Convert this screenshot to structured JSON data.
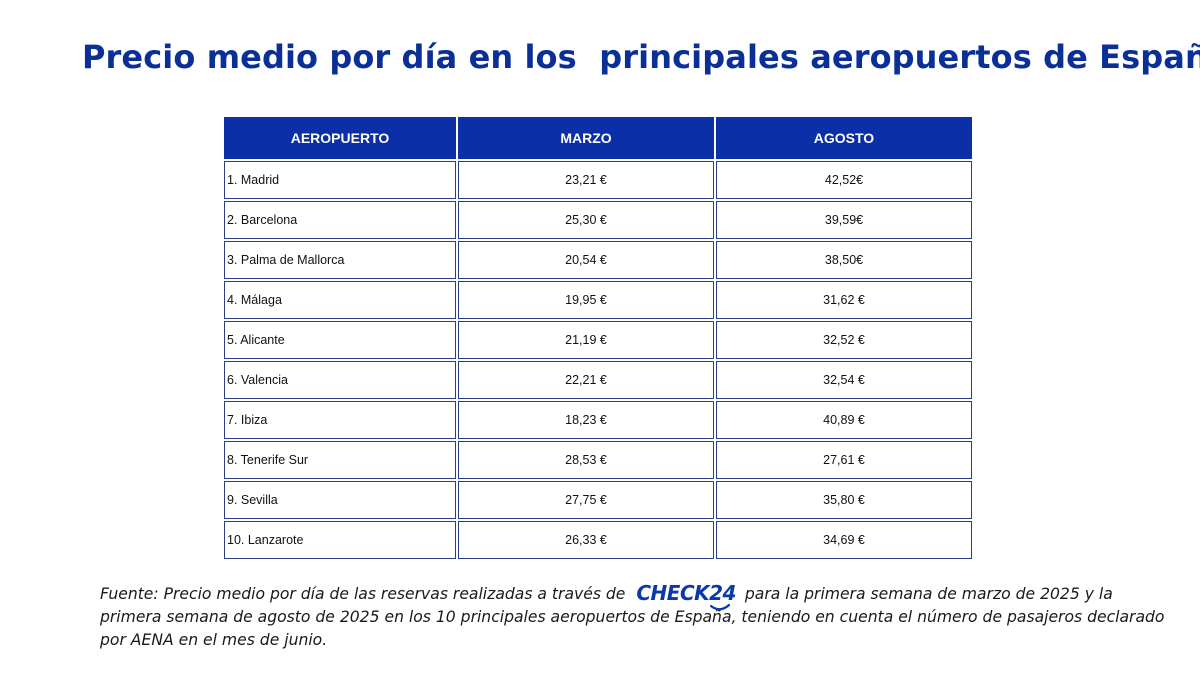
{
  "title": "Precio medio por día en los  principales aeropuertos de España",
  "table": {
    "headers": {
      "airport": "AEROPUERTO",
      "march": "MARZO",
      "august": "AGOSTO"
    },
    "rows": [
      {
        "airport": "1. Madrid",
        "march": "23,21 €",
        "august": "42,52€"
      },
      {
        "airport": "2. Barcelona",
        "march": "25,30 €",
        "august": "39,59€"
      },
      {
        "airport": "3. Palma de Mallorca",
        "march": "20,54 €",
        "august": "38,50€"
      },
      {
        "airport": "4. Málaga",
        "march": "19,95 €",
        "august": "31,62 €"
      },
      {
        "airport": "5. Alicante",
        "march": "21,19 €",
        "august": "32,52 €"
      },
      {
        "airport": "6. Valencia",
        "march": "22,21 €",
        "august": "32,54 €"
      },
      {
        "airport": "7. Ibiza",
        "march": "18,23 €",
        "august": "40,89 €"
      },
      {
        "airport": "8. Tenerife Sur",
        "march": "28,53 €",
        "august": "27,61 €"
      },
      {
        "airport": "9. Sevilla",
        "march": "27,75 €",
        "august": "35,80 €"
      },
      {
        "airport": "10. Lanzarote",
        "march": "26,33 €",
        "august": "34,69 €"
      }
    ]
  },
  "footer": {
    "text_before": "Fuente: Precio medio por día de las reservas realizadas a través de ",
    "brand": "CHECK24",
    "text_after": " para la primera semana de marzo de 2025 y la primera semana de agosto de 2025 en los 10 principales aeropuertos de España, teniendo en cuenta el número de pasajeros declarado por AENA en el mes de junio."
  },
  "colors": {
    "title": "#0a2f96",
    "header_bg": "#0a2fa6",
    "header_text": "#ffffff",
    "cell_border": "#2a3f8a",
    "brand": "#0a3aa8"
  }
}
